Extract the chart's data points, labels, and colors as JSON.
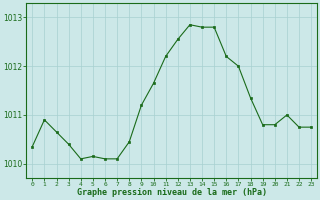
{
  "hours": [
    0,
    1,
    2,
    3,
    4,
    5,
    6,
    7,
    8,
    9,
    10,
    11,
    12,
    13,
    14,
    15,
    16,
    17,
    18,
    19,
    20,
    21,
    22,
    23
  ],
  "pressure": [
    1010.35,
    1010.9,
    1010.65,
    1010.4,
    1010.1,
    1010.15,
    1010.1,
    1010.1,
    1010.45,
    1011.2,
    1011.65,
    1012.2,
    1012.55,
    1012.85,
    1012.8,
    1012.8,
    1012.2,
    1012.0,
    1011.35,
    1010.8,
    1010.8,
    1011.0,
    1010.75,
    1010.75
  ],
  "line_color": "#1a6b1a",
  "marker_color": "#1a6b1a",
  "bg_color": "#cce8e8",
  "grid_color": "#a8d0d0",
  "tick_label_color": "#1a6b1a",
  "xlabel": "Graphe pression niveau de la mer (hPa)",
  "xlabel_color": "#1a6b1a",
  "ylim": [
    1009.7,
    1013.3
  ],
  "yticks": [
    1010,
    1011,
    1012,
    1013
  ],
  "xlim": [
    -0.5,
    23.5
  ],
  "border_color": "#1a6b1a",
  "figsize": [
    3.2,
    2.0
  ],
  "dpi": 100
}
